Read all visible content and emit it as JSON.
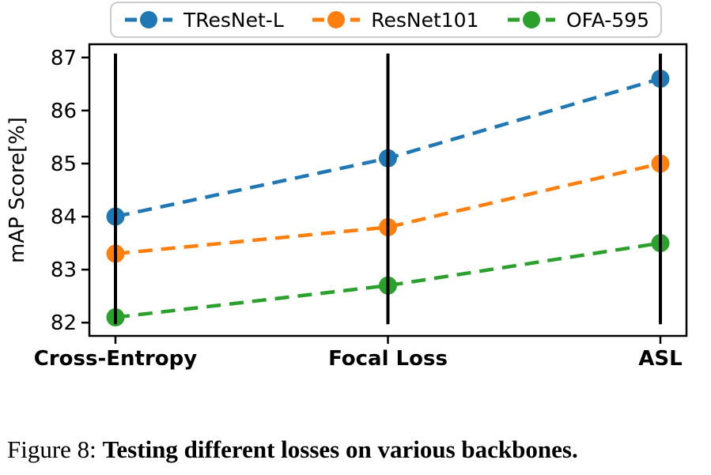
{
  "figure": {
    "caption": {
      "prefix": "Figure 8: ",
      "bold_text": "Testing different losses on various backbones."
    }
  },
  "chart_data": {
    "type": "line",
    "title": "",
    "categories": [
      "Cross-Entropy",
      "Focal Loss",
      "ASL"
    ],
    "series": [
      {
        "name": "TResNet-L",
        "color": "#1f77b4",
        "values": [
          84.0,
          85.1,
          86.6
        ]
      },
      {
        "name": "ResNet101",
        "color": "#ff7f0e",
        "values": [
          83.3,
          83.8,
          85.0
        ]
      },
      {
        "name": "OFA-595",
        "color": "#2ca02c",
        "values": [
          82.1,
          82.7,
          83.5
        ]
      }
    ],
    "xlabel": "",
    "ylabel": "mAP Score[%]",
    "ylim": [
      81.75,
      87.25
    ],
    "yticks": [
      82,
      83,
      84,
      85,
      86,
      87
    ],
    "line_style": "dashed",
    "marker": "circle",
    "grid": false,
    "legend": {
      "position": "top-center-outside",
      "entries": [
        "TResNet-L",
        "ResNet101",
        "OFA-595"
      ]
    },
    "vertical_guides": {
      "present": true,
      "color": "#000000",
      "span": [
        82,
        87
      ]
    },
    "axis_color": "#000000",
    "tick_label_color": "#000000",
    "x_tick_label_weight": "bold"
  }
}
